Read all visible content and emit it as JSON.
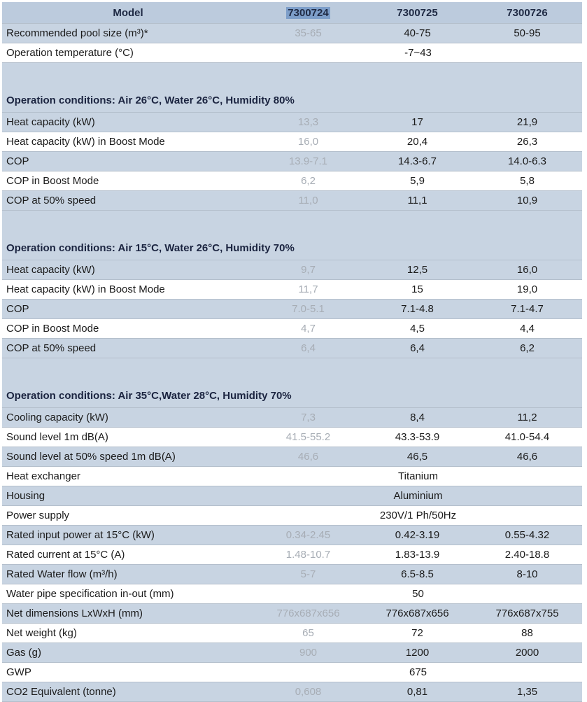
{
  "header": {
    "label": "Model",
    "models": [
      "7300724",
      "7300725",
      "7300726"
    ]
  },
  "rows": [
    {
      "type": "data",
      "label": "Recommended pool size (m³)*",
      "v": [
        "35-65",
        "40-75",
        "50-95"
      ]
    },
    {
      "type": "merged",
      "label": "Operation temperature (°C)",
      "value": "-7~43"
    },
    {
      "type": "section",
      "label": "Operation conditions: Air 26°C, Water 26°C, Humidity 80%"
    },
    {
      "type": "data",
      "label": "Heat capacity (kW)",
      "v": [
        "13,3",
        "17",
        "21,9"
      ]
    },
    {
      "type": "data",
      "label": "Heat capacity (kW) in Boost Mode",
      "v": [
        "16,0",
        "20,4",
        "26,3"
      ]
    },
    {
      "type": "data",
      "label": "COP",
      "v": [
        "13.9-7.1",
        "14.3-6.7",
        "14.0-6.3"
      ]
    },
    {
      "type": "data",
      "label": "COP in Boost Mode",
      "v": [
        "6,2",
        "5,9",
        "5,8"
      ]
    },
    {
      "type": "data",
      "label": "COP at 50% speed",
      "v": [
        "11,0",
        "11,1",
        "10,9"
      ]
    },
    {
      "type": "section",
      "label": "Operation conditions: Air 15°C, Water 26°C, Humidity 70%"
    },
    {
      "type": "data",
      "label": "Heat capacity (kW)",
      "v": [
        "9,7",
        "12,5",
        "16,0"
      ]
    },
    {
      "type": "data",
      "label": "Heat capacity (kW) in Boost Mode",
      "v": [
        "11,7",
        "15",
        "19,0"
      ]
    },
    {
      "type": "data",
      "label": "COP",
      "v": [
        "7.0-5.1",
        "7.1-4.8",
        "7.1-4.7"
      ]
    },
    {
      "type": "data",
      "label": "COP in Boost Mode",
      "v": [
        "4,7",
        "4,5",
        "4,4"
      ]
    },
    {
      "type": "data",
      "label": "COP at 50% speed",
      "v": [
        "6,4",
        "6,4",
        "6,2"
      ]
    },
    {
      "type": "section",
      "label": "Operation conditions: Air 35°C,Water 28°C, Humidity 70%"
    },
    {
      "type": "data",
      "label": "Cooling capacity (kW)",
      "v": [
        "7,3",
        "8,4",
        "11,2"
      ]
    },
    {
      "type": "data",
      "label": "Sound level 1m dB(A)",
      "v": [
        "41.5-55.2",
        "43.3-53.9",
        "41.0-54.4"
      ]
    },
    {
      "type": "data",
      "label": "Sound level at 50% speed 1m dB(A)",
      "v": [
        "46,6",
        "46,5",
        "46,6"
      ]
    },
    {
      "type": "merged",
      "label": "Heat exchanger",
      "value": "Titanium"
    },
    {
      "type": "merged",
      "label": "Housing",
      "value": "Aluminium"
    },
    {
      "type": "merged",
      "label": "Power supply",
      "value": "230V/1 Ph/50Hz"
    },
    {
      "type": "data",
      "label": "Rated input power at 15°C (kW)",
      "v": [
        "0.34-2.45",
        "0.42-3.19",
        "0.55-4.32"
      ]
    },
    {
      "type": "data",
      "label": "Rated current at 15°C  (A)",
      "v": [
        "1.48-10.7",
        "1.83-13.9",
        "2.40-18.8"
      ]
    },
    {
      "type": "data",
      "label": "Rated  Water flow   (m³/h)",
      "v": [
        "5-7",
        "6.5-8.5",
        "8-10"
      ]
    },
    {
      "type": "merged",
      "label": "Water pipe specification in-out  (mm)",
      "value": "50"
    },
    {
      "type": "data",
      "label": "Net dimensions LxWxH (mm)",
      "v": [
        "776x687x656",
        "776x687x656",
        "776x687x755"
      ]
    },
    {
      "type": "data",
      "label": "Net weight    (kg)",
      "v": [
        "65",
        "72",
        "88"
      ]
    },
    {
      "type": "data",
      "label": "Gas (g)",
      "v": [
        "900",
        "1200",
        "2000"
      ]
    },
    {
      "type": "merged",
      "label": "GWP",
      "value": "675"
    },
    {
      "type": "data",
      "label": "CO2 Equivalent (tonne)",
      "v": [
        "0,608",
        "0,81",
        "1,35"
      ]
    }
  ]
}
